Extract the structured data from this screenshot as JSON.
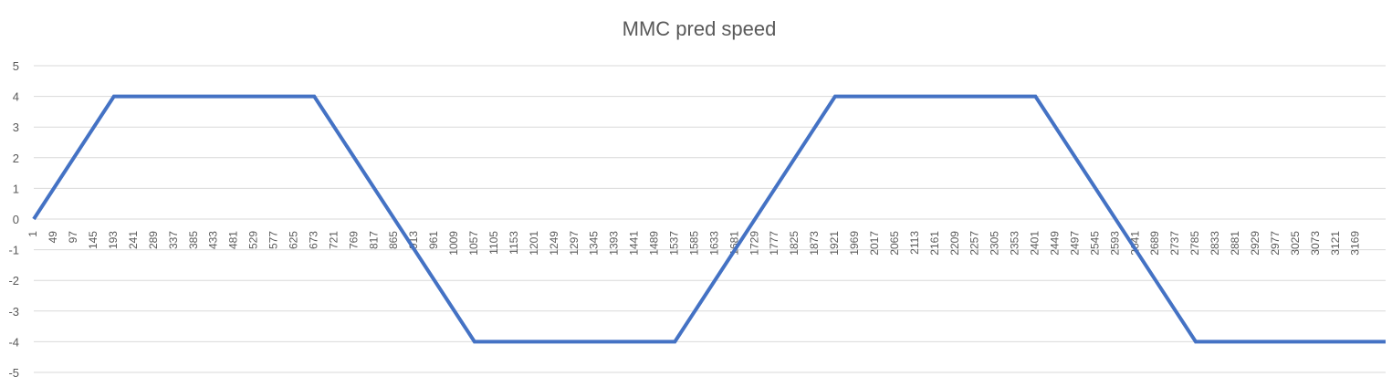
{
  "chart_data": {
    "type": "line",
    "title": "MMC pred speed",
    "xlabel": "",
    "ylabel": "",
    "ylim": [
      -5,
      5
    ],
    "yticks": [
      5,
      4,
      3,
      2,
      1,
      0,
      -1,
      -2,
      -3,
      -4,
      -5
    ],
    "x_range": [
      1,
      3240
    ],
    "x_tick_labels": [
      1,
      49,
      97,
      145,
      193,
      241,
      289,
      337,
      385,
      433,
      481,
      529,
      577,
      625,
      673,
      721,
      769,
      817,
      865,
      913,
      961,
      1009,
      1057,
      1105,
      1153,
      1201,
      1249,
      1297,
      1345,
      1393,
      1441,
      1489,
      1537,
      1585,
      1633,
      1681,
      1729,
      1777,
      1825,
      1873,
      1921,
      1969,
      2017,
      2065,
      2113,
      2161,
      2209,
      2257,
      2305,
      2353,
      2401,
      2449,
      2497,
      2545,
      2593,
      2641,
      2689,
      2737,
      2785,
      2833,
      2881,
      2929,
      2977,
      3025,
      3073,
      3121,
      3169
    ],
    "grid": true,
    "legend": "none",
    "color": "#4472c4",
    "series": [
      {
        "name": "",
        "x": [
          1,
          193,
          673,
          1057,
          1537,
          1921,
          2401,
          2785,
          3240
        ],
        "y": [
          0,
          4,
          4,
          -4,
          -4,
          4,
          4,
          -4,
          -4
        ]
      }
    ]
  }
}
